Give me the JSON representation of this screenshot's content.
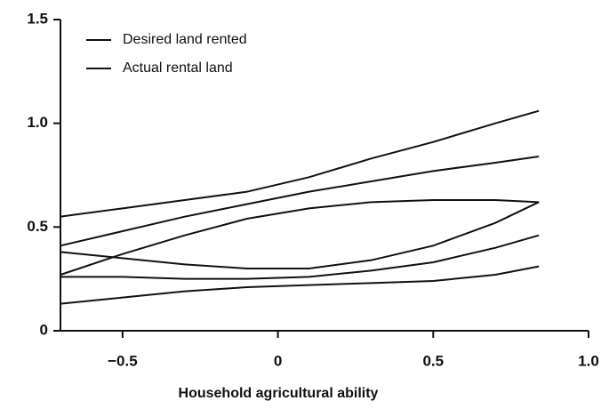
{
  "chart_data": {
    "type": "line",
    "xlabel": "Household agricultural ability",
    "x": [
      -0.7,
      -0.5,
      -0.3,
      -0.1,
      0.1,
      0.3,
      0.5,
      0.7,
      0.84
    ],
    "series": [
      {
        "name": "Desired land rented",
        "color": "#111111",
        "values": [
          0.41,
          0.48,
          0.55,
          0.61,
          0.67,
          0.72,
          0.77,
          0.81,
          0.84
        ],
        "upper": [
          0.55,
          0.59,
          0.63,
          0.67,
          0.74,
          0.83,
          0.91,
          1.0,
          1.06
        ],
        "lower": [
          0.27,
          0.37,
          0.46,
          0.54,
          0.59,
          0.62,
          0.63,
          0.63,
          0.62
        ]
      },
      {
        "name": "Actual rental land",
        "color": "#111111",
        "values": [
          0.26,
          0.26,
          0.25,
          0.25,
          0.26,
          0.29,
          0.33,
          0.4,
          0.46
        ],
        "upper": [
          0.38,
          0.35,
          0.32,
          0.3,
          0.3,
          0.34,
          0.41,
          0.52,
          0.62
        ],
        "lower": [
          0.13,
          0.16,
          0.19,
          0.21,
          0.22,
          0.23,
          0.24,
          0.27,
          0.31
        ]
      }
    ],
    "xlim": [
      -0.7,
      1.0
    ],
    "xticks": [
      {
        "value": -0.5,
        "label": "−0.5"
      },
      0,
      0.5,
      {
        "value": 1.0,
        "label": "1.0"
      }
    ],
    "ylim": [
      0,
      1.5
    ],
    "yticks": [
      0,
      0.5,
      {
        "value": 1.0,
        "label": "1.0"
      },
      1.5
    ],
    "grid": false,
    "legend": "upper left"
  }
}
